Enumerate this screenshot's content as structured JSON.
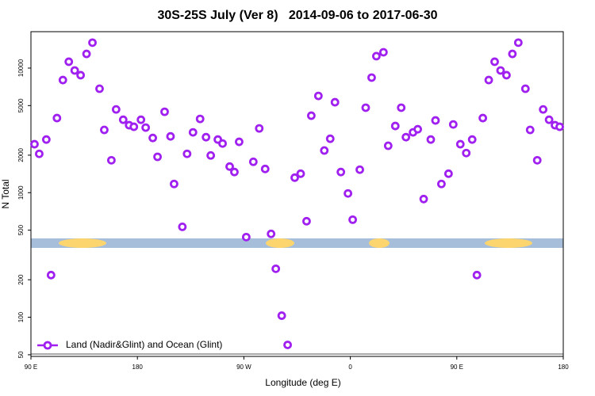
{
  "chart_data": {
    "type": "scatter",
    "title": "30S-25S July (Ver 8)   2014-09-06 to 2017-06-30",
    "xlabel": "Longitude (deg E)",
    "ylabel": "N Total",
    "xlim": [
      90,
      540
    ],
    "xticks": [
      {
        "value": 90,
        "label": "90 E"
      },
      180,
      {
        "value": 270,
        "label": "90 W"
      },
      {
        "value": 360,
        "label": "0"
      },
      {
        "value": 450,
        "label": "90 E"
      },
      {
        "value": 540,
        "label": "180"
      }
    ],
    "ylim": [
      48.5,
      19600
    ],
    "yscale": "log",
    "yticks": [
      50,
      100,
      200,
      500,
      1000,
      2000,
      5000,
      10000
    ],
    "legend": "lower left",
    "series": [
      {
        "name": "Land (Nadir&Glint) and Ocean (Glint)",
        "color": "#a020f0",
        "x": [
          93,
          97,
          103,
          107,
          112,
          117,
          122,
          127,
          132,
          137,
          142,
          148,
          152,
          158,
          162,
          168,
          173,
          177,
          183,
          187,
          193,
          197,
          203,
          208,
          211,
          218,
          222,
          227,
          233,
          238,
          242,
          248,
          252,
          258,
          262,
          266,
          272,
          278,
          283,
          288,
          293,
          297,
          302,
          307,
          313,
          318,
          323,
          327,
          333,
          338,
          343,
          347,
          352,
          358,
          362,
          368,
          373,
          378,
          382,
          388,
          392,
          398,
          403,
          407,
          413,
          417,
          422,
          428,
          432,
          437,
          443,
          447,
          453,
          458,
          463,
          467,
          472,
          477,
          482,
          487,
          492,
          497,
          502,
          508,
          512,
          518,
          523,
          528,
          533,
          537
        ],
        "values": [
          2450,
          2050,
          2670,
          218,
          3970,
          8020,
          11250,
          9570,
          8770,
          13000,
          16000,
          6830,
          3190,
          1820,
          4660,
          3850,
          3480,
          3380,
          3850,
          3330,
          2750,
          1940,
          4460,
          2830,
          1175,
          532,
          2050,
          3050,
          3910,
          2790,
          1990,
          2670,
          2480,
          1620,
          1465,
          2560,
          440,
          1770,
          3280,
          1550,
          467,
          245,
          103,
          60,
          1320,
          1420,
          590,
          4150,
          5980,
          2180,
          2710,
          5320,
          1465,
          986,
          607,
          1530,
          4810,
          8390,
          12470,
          13400,
          2380,
          3430,
          4810,
          2790,
          3050,
          3230,
          889,
          2670,
          3800,
          1175,
          1420,
          3530,
          2450,
          2080,
          2670,
          218,
          3970,
          8020,
          11250,
          9570,
          8770,
          13000,
          16000,
          6830,
          3190,
          1820,
          4660,
          3850,
          3480,
          3380
        ]
      }
    ]
  }
}
